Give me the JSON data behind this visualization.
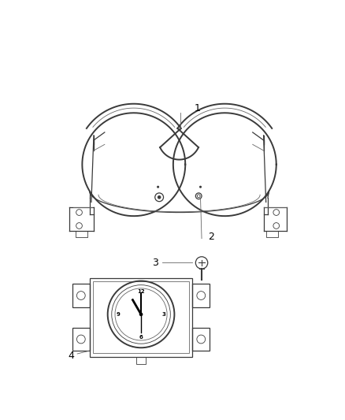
{
  "background_color": "#ffffff",
  "line_color": "#3a3a3a",
  "thin_color": "#666666",
  "label1": "1",
  "label2": "2",
  "label3": "3",
  "label4": "4",
  "figsize": [
    4.38,
    5.33
  ],
  "dpi": 100
}
